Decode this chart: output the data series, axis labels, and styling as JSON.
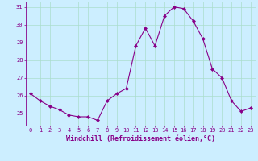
{
  "x": [
    0,
    1,
    2,
    3,
    4,
    5,
    6,
    7,
    8,
    9,
    10,
    11,
    12,
    13,
    14,
    15,
    16,
    17,
    18,
    19,
    20,
    21,
    22,
    23
  ],
  "y": [
    26.1,
    25.7,
    25.4,
    25.2,
    24.9,
    24.8,
    24.8,
    24.6,
    25.7,
    26.1,
    26.4,
    28.8,
    29.8,
    28.8,
    30.5,
    31.0,
    30.9,
    30.2,
    29.2,
    27.5,
    27.0,
    25.7,
    25.1,
    25.3
  ],
  "line_color": "#880088",
  "marker_color": "#880088",
  "bg_color": "#cceeff",
  "grid_color": "#aaddcc",
  "xlabel": "Windchill (Refroidissement éolien,°C)",
  "xlabel_color": "#880088",
  "tick_color": "#880088",
  "ylim": [
    24.3,
    31.3
  ],
  "yticks": [
    25,
    26,
    27,
    28,
    29,
    30,
    31
  ],
  "xticks": [
    0,
    1,
    2,
    3,
    4,
    5,
    6,
    7,
    8,
    9,
    10,
    11,
    12,
    13,
    14,
    15,
    16,
    17,
    18,
    19,
    20,
    21,
    22,
    23
  ],
  "spine_color": "#880088"
}
